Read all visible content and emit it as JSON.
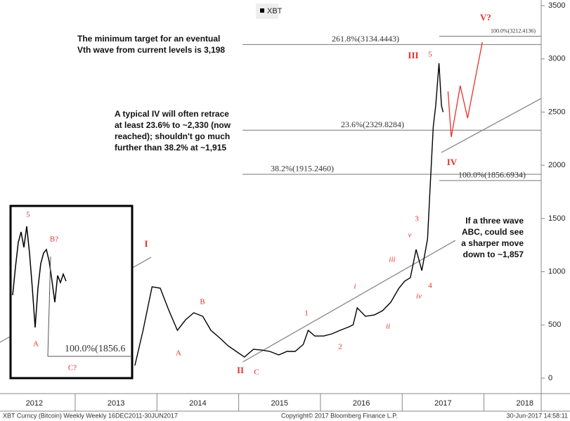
{
  "chart_data": {
    "type": "line",
    "series": [
      {
        "name": "XBT",
        "color": "#000000",
        "x": [
          2013.73,
          2013.83,
          2013.94,
          2014.04,
          2014.14,
          2014.25,
          2014.35,
          2014.45,
          2014.56,
          2014.66,
          2014.76,
          2014.87,
          2014.97,
          2015.07,
          2015.18,
          2015.28,
          2015.38,
          2015.49,
          2015.59,
          2015.69,
          2015.79,
          2015.85,
          2015.93,
          2016.04,
          2016.14,
          2016.24,
          2016.35,
          2016.4,
          2016.45,
          2016.55,
          2016.66,
          2016.76,
          2016.86,
          2016.96,
          2017.03,
          2017.1,
          2017.17,
          2017.24,
          2017.31,
          2017.34,
          2017.38,
          2017.41,
          2017.45,
          2017.48,
          2017.5
        ],
        "values": [
          119,
          449,
          858,
          845,
          647,
          449,
          548,
          614,
          581,
          449,
          383,
          304,
          251,
          198,
          271,
          264,
          251,
          218,
          251,
          251,
          317,
          449,
          396,
          396,
          416,
          449,
          482,
          502,
          660,
          581,
          594,
          634,
          713,
          845,
          911,
          944,
          1209,
          1010,
          1308,
          1770,
          2364,
          2562,
          2959,
          2562,
          2500
        ]
      }
    ],
    "xlim": [
      2012.08,
      2018.7
    ],
    "xticks": [
      {
        "value": 2012.5,
        "label": "2012"
      },
      {
        "value": 2013.5,
        "label": "2013"
      },
      {
        "value": 2014.5,
        "label": "2014"
      },
      {
        "value": 2015.5,
        "label": "2015"
      },
      {
        "value": 2016.5,
        "label": "2016"
      },
      {
        "value": 2017.5,
        "label": "2017"
      },
      {
        "value": 2018.5,
        "label": "2018"
      }
    ],
    "ylim": [
      0,
      3500
    ],
    "yticks": [
      0,
      500,
      1000,
      1500,
      2000,
      2500,
      3000,
      3500
    ],
    "grid": false,
    "levels": [
      {
        "value": 3134.4443,
        "label": "261.8%(3134.4443)"
      },
      {
        "value": 2329.8284,
        "label": "23.6%(2329.8284)"
      },
      {
        "value": 1915.246,
        "label": "38.2%(1915.2460)"
      },
      {
        "value": 3212.4136,
        "label": "100.0%(3212.4136)"
      },
      {
        "value": 1856.6934,
        "label": "100.0%(1856.6934)"
      }
    ],
    "lines": [
      {
        "color": "#888888",
        "x": [
          2015.05,
          2017.65
        ],
        "values": [
          152,
          1294
        ]
      },
      {
        "color": "#888888",
        "x": [
          2012.08,
          2013.93
        ],
        "values": [
          337,
          1136
        ]
      },
      {
        "color": "#888888",
        "x": [
          2017.48,
          2018.7
        ],
        "values": [
          2120,
          2628
        ]
      },
      {
        "color": "#e8302a",
        "x": [
          2017.56,
          2017.6,
          2017.71,
          2017.8,
          2017.98
        ],
        "values": [
          2694,
          2265,
          2747,
          2443,
          3157
        ]
      }
    ],
    "wave_labels": [
      "III",
      "5",
      "IV",
      "V?",
      "I",
      "II",
      "A",
      "B",
      "C",
      "1",
      "2",
      "i",
      "ii",
      "iii",
      "iv",
      "v",
      "3",
      "4"
    ],
    "inset_labels": [
      "5",
      "B?",
      "A",
      "C?",
      "100.0%(1856.6"
    ],
    "notes": [
      [
        "The minimum target  for  an eventual",
        "Vth wave from current levels is 3,198"
      ],
      [
        "A typical IV will often retrace",
        "at least 23.6% to ~2,330 (now",
        "reached); shouldn't go much",
        "further  than  38.2% at ~1,915"
      ],
      [
        "If  a three wave",
        "ABC, could see",
        "a sharper move",
        "down  to ~1,857"
      ]
    ],
    "footer_left": "XBT Curncy (Bitcoin) Weekly   Weekly 16DEC2011-30JUN2017",
    "footer_center": "Copyright© 2017 Bloomberg Finance L.P.",
    "footer_right": "30-Jun-2017 14:58:11"
  }
}
